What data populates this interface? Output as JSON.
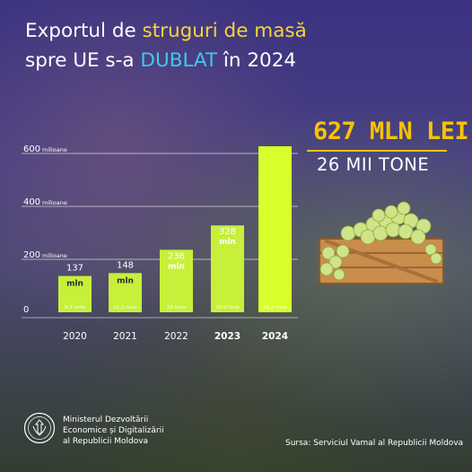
{
  "header": {
    "line1_a": "Exportul de ",
    "line1_b": "struguri de masă",
    "line2_a": "spre UE s-a ",
    "line2_b": "DUBLAT",
    "line2_c": " în 2024"
  },
  "highlight": {
    "value_lei": "627 MLN LEI",
    "value_tons": "26 MII TONE"
  },
  "chart_data": {
    "type": "bar",
    "categories": [
      "2020",
      "2021",
      "2022",
      "2023",
      "2024"
    ],
    "values": [
      137,
      148,
      236,
      328,
      627
    ],
    "value_labels": [
      "137",
      "148",
      "236",
      "328",
      ""
    ],
    "unit_labels": [
      "mln",
      "mln",
      "mln",
      "mln",
      ""
    ],
    "tonnage_labels": [
      "9,7 tone",
      "11,2 tone",
      "18 tone",
      "18,9 tone",
      "26,2 tone"
    ],
    "ylim": [
      0,
      627
    ],
    "yticks": [
      {
        "value": 0,
        "label": "0",
        "unit": ""
      },
      {
        "value": 200,
        "label": "200",
        "unit": "milioane"
      },
      {
        "value": 400,
        "label": "400",
        "unit": "milioane"
      },
      {
        "value": 600,
        "label": "600",
        "unit": "milioane"
      }
    ],
    "bold_categories": [
      "2023",
      "2024"
    ],
    "colors": {
      "bar": "#c7f03a",
      "bar_highlight": "#d8ff2c",
      "gridline": "#ffffff"
    }
  },
  "footer": {
    "ministry_line1": "Ministerul Dezvoltării",
    "ministry_line2": "Economice și Digitalizării",
    "ministry_line3": "al Republicii Moldova",
    "source": "Sursa: Serviciul Vamal al Republicii Moldova"
  }
}
